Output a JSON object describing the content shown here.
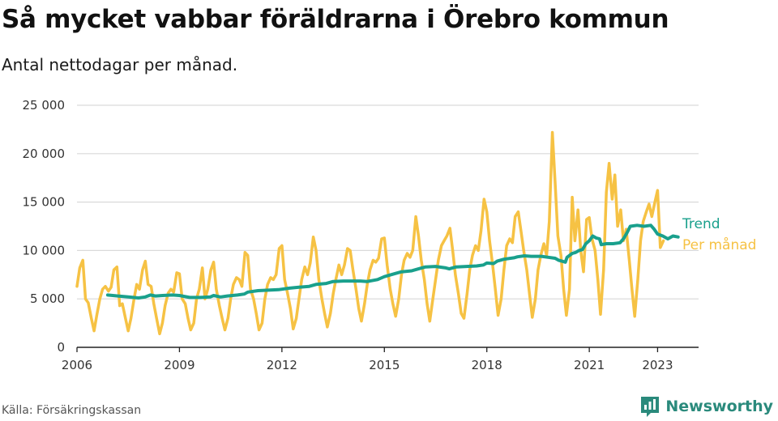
{
  "title": "Så mycket vabbar föräldrarna i Örebro kommun",
  "subtitle": "Antal nettodagar per månad.",
  "source": "Källa: Försäkringskassan",
  "brand": {
    "name": "Newsworthy",
    "icon": "newsworthy-bar-chart-icon",
    "color": "#2a8a7c"
  },
  "chart_data": {
    "type": "line",
    "ylim": [
      0,
      25000
    ],
    "yticks": [
      0,
      5000,
      10000,
      15000,
      20000,
      25000
    ],
    "ytick_labels": [
      "0",
      "5 000",
      "10 000",
      "15 000",
      "20 000",
      "25 000"
    ],
    "xlim": [
      2006,
      2024.2
    ],
    "xticks": [
      2006,
      2009,
      2012,
      2015,
      2018,
      2021,
      2023
    ],
    "xtick_labels": [
      "2006",
      "2009",
      "2012",
      "2015",
      "2018",
      "2021",
      "2023"
    ],
    "grid": "horizontal",
    "legend": "end-of-line labels",
    "series": [
      {
        "name": "Per månad",
        "color": "#f6c244",
        "points": [
          [
            2006.0,
            6300
          ],
          [
            2006.08,
            8200
          ],
          [
            2006.17,
            9000
          ],
          [
            2006.25,
            5000
          ],
          [
            2006.33,
            4600
          ],
          [
            2006.42,
            3000
          ],
          [
            2006.5,
            1700
          ],
          [
            2006.58,
            3300
          ],
          [
            2006.67,
            5000
          ],
          [
            2006.75,
            6000
          ],
          [
            2006.83,
            6300
          ],
          [
            2006.92,
            5800
          ],
          [
            2007.0,
            6200
          ],
          [
            2007.08,
            8000
          ],
          [
            2007.17,
            8300
          ],
          [
            2007.25,
            4300
          ],
          [
            2007.33,
            4500
          ],
          [
            2007.42,
            3000
          ],
          [
            2007.5,
            1700
          ],
          [
            2007.58,
            3000
          ],
          [
            2007.67,
            5000
          ],
          [
            2007.75,
            6500
          ],
          [
            2007.83,
            6000
          ],
          [
            2007.92,
            8000
          ],
          [
            2008.0,
            8900
          ],
          [
            2008.08,
            6500
          ],
          [
            2008.17,
            6300
          ],
          [
            2008.25,
            4500
          ],
          [
            2008.33,
            3000
          ],
          [
            2008.42,
            1400
          ],
          [
            2008.5,
            2500
          ],
          [
            2008.58,
            4300
          ],
          [
            2008.67,
            5600
          ],
          [
            2008.75,
            6000
          ],
          [
            2008.83,
            5700
          ],
          [
            2008.92,
            7700
          ],
          [
            2009.0,
            7600
          ],
          [
            2009.08,
            5000
          ],
          [
            2009.17,
            4500
          ],
          [
            2009.25,
            3000
          ],
          [
            2009.33,
            1800
          ],
          [
            2009.42,
            2500
          ],
          [
            2009.5,
            5000
          ],
          [
            2009.58,
            6000
          ],
          [
            2009.67,
            8200
          ],
          [
            2009.75,
            5000
          ],
          [
            2009.83,
            6000
          ],
          [
            2009.92,
            8000
          ],
          [
            2010.0,
            8800
          ],
          [
            2010.08,
            6000
          ],
          [
            2010.17,
            4300
          ],
          [
            2010.25,
            3000
          ],
          [
            2010.33,
            1800
          ],
          [
            2010.42,
            3000
          ],
          [
            2010.5,
            5000
          ],
          [
            2010.58,
            6500
          ],
          [
            2010.67,
            7200
          ],
          [
            2010.75,
            7000
          ],
          [
            2010.83,
            6300
          ],
          [
            2010.92,
            9800
          ],
          [
            2011.0,
            9500
          ],
          [
            2011.08,
            6000
          ],
          [
            2011.17,
            5000
          ],
          [
            2011.25,
            3500
          ],
          [
            2011.33,
            1800
          ],
          [
            2011.42,
            2500
          ],
          [
            2011.5,
            5000
          ],
          [
            2011.58,
            6500
          ],
          [
            2011.67,
            7200
          ],
          [
            2011.75,
            7000
          ],
          [
            2011.83,
            7500
          ],
          [
            2011.92,
            10200
          ],
          [
            2012.0,
            10500
          ],
          [
            2012.08,
            7000
          ],
          [
            2012.17,
            5500
          ],
          [
            2012.25,
            4000
          ],
          [
            2012.33,
            1900
          ],
          [
            2012.42,
            3000
          ],
          [
            2012.5,
            5000
          ],
          [
            2012.58,
            7000
          ],
          [
            2012.67,
            8300
          ],
          [
            2012.75,
            7500
          ],
          [
            2012.83,
            8700
          ],
          [
            2012.92,
            11400
          ],
          [
            2013.0,
            10000
          ],
          [
            2013.08,
            7000
          ],
          [
            2013.17,
            5000
          ],
          [
            2013.25,
            3500
          ],
          [
            2013.33,
            2100
          ],
          [
            2013.42,
            3500
          ],
          [
            2013.5,
            5500
          ],
          [
            2013.58,
            7000
          ],
          [
            2013.67,
            8500
          ],
          [
            2013.75,
            7500
          ],
          [
            2013.83,
            8500
          ],
          [
            2013.92,
            10200
          ],
          [
            2014.0,
            10000
          ],
          [
            2014.08,
            8000
          ],
          [
            2014.17,
            6000
          ],
          [
            2014.25,
            4000
          ],
          [
            2014.33,
            2700
          ],
          [
            2014.42,
            4500
          ],
          [
            2014.5,
            6500
          ],
          [
            2014.58,
            8000
          ],
          [
            2014.67,
            9000
          ],
          [
            2014.75,
            8800
          ],
          [
            2014.83,
            9200
          ],
          [
            2014.92,
            11200
          ],
          [
            2015.0,
            11300
          ],
          [
            2015.08,
            8500
          ],
          [
            2015.17,
            6000
          ],
          [
            2015.25,
            4500
          ],
          [
            2015.33,
            3200
          ],
          [
            2015.42,
            5000
          ],
          [
            2015.5,
            7500
          ],
          [
            2015.58,
            9000
          ],
          [
            2015.67,
            9700
          ],
          [
            2015.75,
            9300
          ],
          [
            2015.83,
            10000
          ],
          [
            2015.92,
            13500
          ],
          [
            2016.0,
            11500
          ],
          [
            2016.08,
            9000
          ],
          [
            2016.17,
            7000
          ],
          [
            2016.25,
            4500
          ],
          [
            2016.33,
            2700
          ],
          [
            2016.42,
            5000
          ],
          [
            2016.5,
            7000
          ],
          [
            2016.58,
            9000
          ],
          [
            2016.67,
            10500
          ],
          [
            2016.75,
            11000
          ],
          [
            2016.83,
            11500
          ],
          [
            2016.92,
            12300
          ],
          [
            2017.0,
            10000
          ],
          [
            2017.08,
            7500
          ],
          [
            2017.17,
            5500
          ],
          [
            2017.25,
            3500
          ],
          [
            2017.33,
            3000
          ],
          [
            2017.42,
            5500
          ],
          [
            2017.5,
            8000
          ],
          [
            2017.58,
            9500
          ],
          [
            2017.67,
            10500
          ],
          [
            2017.75,
            10000
          ],
          [
            2017.83,
            12000
          ],
          [
            2017.92,
            15300
          ],
          [
            2018.0,
            14000
          ],
          [
            2018.08,
            11000
          ],
          [
            2018.17,
            8500
          ],
          [
            2018.25,
            6000
          ],
          [
            2018.33,
            3300
          ],
          [
            2018.42,
            5000
          ],
          [
            2018.5,
            8000
          ],
          [
            2018.58,
            10500
          ],
          [
            2018.67,
            11200
          ],
          [
            2018.75,
            10800
          ],
          [
            2018.83,
            13500
          ],
          [
            2018.92,
            14000
          ],
          [
            2019.0,
            12000
          ],
          [
            2019.08,
            10000
          ],
          [
            2019.17,
            8000
          ],
          [
            2019.25,
            5500
          ],
          [
            2019.33,
            3100
          ],
          [
            2019.42,
            5000
          ],
          [
            2019.5,
            8000
          ],
          [
            2019.58,
            9500
          ],
          [
            2019.67,
            10700
          ],
          [
            2019.75,
            9500
          ],
          [
            2019.83,
            13000
          ],
          [
            2019.92,
            22200
          ],
          [
            2020.0,
            17000
          ],
          [
            2020.08,
            11500
          ],
          [
            2020.17,
            9500
          ],
          [
            2020.25,
            6000
          ],
          [
            2020.33,
            3300
          ],
          [
            2020.42,
            6000
          ],
          [
            2020.5,
            15500
          ],
          [
            2020.58,
            11000
          ],
          [
            2020.67,
            14200
          ],
          [
            2020.75,
            10000
          ],
          [
            2020.83,
            7800
          ],
          [
            2020.92,
            13200
          ],
          [
            2021.0,
            13400
          ],
          [
            2021.08,
            11200
          ],
          [
            2021.17,
            10000
          ],
          [
            2021.25,
            7000
          ],
          [
            2021.33,
            3400
          ],
          [
            2021.42,
            8000
          ],
          [
            2021.5,
            16000
          ],
          [
            2021.58,
            19000
          ],
          [
            2021.67,
            15300
          ],
          [
            2021.75,
            17800
          ],
          [
            2021.83,
            12500
          ],
          [
            2021.92,
            14200
          ],
          [
            2022.0,
            11000
          ],
          [
            2022.08,
            12200
          ],
          [
            2022.17,
            9000
          ],
          [
            2022.25,
            6000
          ],
          [
            2022.33,
            3200
          ],
          [
            2022.42,
            7000
          ],
          [
            2022.5,
            11000
          ],
          [
            2022.58,
            13000
          ],
          [
            2022.67,
            14000
          ],
          [
            2022.75,
            14800
          ],
          [
            2022.83,
            13500
          ],
          [
            2022.92,
            15000
          ],
          [
            2023.0,
            16200
          ],
          [
            2023.08,
            10300
          ],
          [
            2023.17,
            11000
          ]
        ]
      },
      {
        "name": "Trend",
        "color": "#19a08c",
        "points": [
          [
            2006.9,
            5400
          ],
          [
            2007.2,
            5300
          ],
          [
            2007.5,
            5200
          ],
          [
            2007.8,
            5100
          ],
          [
            2008.0,
            5200
          ],
          [
            2008.15,
            5400
          ],
          [
            2008.3,
            5300
          ],
          [
            2008.5,
            5350
          ],
          [
            2008.8,
            5400
          ],
          [
            2009.0,
            5350
          ],
          [
            2009.3,
            5150
          ],
          [
            2009.6,
            5150
          ],
          [
            2009.9,
            5200
          ],
          [
            2010.0,
            5350
          ],
          [
            2010.2,
            5200
          ],
          [
            2010.4,
            5300
          ],
          [
            2010.7,
            5400
          ],
          [
            2010.9,
            5500
          ],
          [
            2011.0,
            5700
          ],
          [
            2011.3,
            5850
          ],
          [
            2011.6,
            5900
          ],
          [
            2011.9,
            5950
          ],
          [
            2012.2,
            6100
          ],
          [
            2012.5,
            6200
          ],
          [
            2012.8,
            6300
          ],
          [
            2013.0,
            6500
          ],
          [
            2013.3,
            6600
          ],
          [
            2013.5,
            6800
          ],
          [
            2013.8,
            6850
          ],
          [
            2014.0,
            6850
          ],
          [
            2014.3,
            6850
          ],
          [
            2014.5,
            6800
          ],
          [
            2014.8,
            7000
          ],
          [
            2015.0,
            7300
          ],
          [
            2015.3,
            7600
          ],
          [
            2015.5,
            7800
          ],
          [
            2015.8,
            7900
          ],
          [
            2016.0,
            8100
          ],
          [
            2016.2,
            8300
          ],
          [
            2016.5,
            8350
          ],
          [
            2016.8,
            8200
          ],
          [
            2016.9,
            8100
          ],
          [
            2017.1,
            8300
          ],
          [
            2017.4,
            8350
          ],
          [
            2017.7,
            8400
          ],
          [
            2017.9,
            8500
          ],
          [
            2018.0,
            8700
          ],
          [
            2018.2,
            8650
          ],
          [
            2018.3,
            8900
          ],
          [
            2018.5,
            9100
          ],
          [
            2018.8,
            9250
          ],
          [
            2018.9,
            9350
          ],
          [
            2019.1,
            9450
          ],
          [
            2019.3,
            9400
          ],
          [
            2019.6,
            9400
          ],
          [
            2019.8,
            9300
          ],
          [
            2020.0,
            9200
          ],
          [
            2020.1,
            9000
          ],
          [
            2020.2,
            8900
          ],
          [
            2020.3,
            8800
          ],
          [
            2020.35,
            9300
          ],
          [
            2020.5,
            9700
          ],
          [
            2020.6,
            9800
          ],
          [
            2020.7,
            10000
          ],
          [
            2020.8,
            10100
          ],
          [
            2020.9,
            10700
          ],
          [
            2021.0,
            11000
          ],
          [
            2021.1,
            11500
          ],
          [
            2021.2,
            11300
          ],
          [
            2021.3,
            11200
          ],
          [
            2021.35,
            10600
          ],
          [
            2021.5,
            10700
          ],
          [
            2021.7,
            10700
          ],
          [
            2021.9,
            10800
          ],
          [
            2022.0,
            11200
          ],
          [
            2022.1,
            11800
          ],
          [
            2022.2,
            12500
          ],
          [
            2022.4,
            12600
          ],
          [
            2022.6,
            12500
          ],
          [
            2022.8,
            12600
          ],
          [
            2022.9,
            12200
          ],
          [
            2023.0,
            11700
          ],
          [
            2023.15,
            11500
          ],
          [
            2023.3,
            11200
          ],
          [
            2023.45,
            11500
          ],
          [
            2023.6,
            11400
          ]
        ]
      }
    ]
  }
}
